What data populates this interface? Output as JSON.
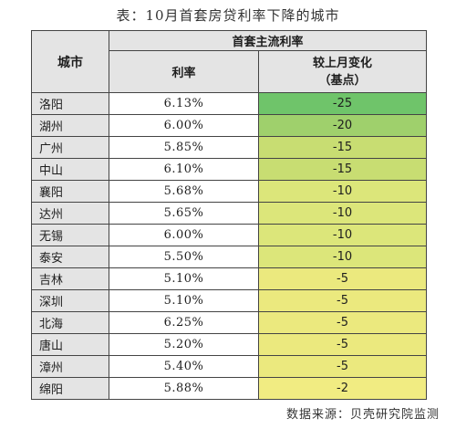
{
  "title": "表：10月首套房贷利率下降的城市",
  "table": {
    "header_city": "城市",
    "header_group": "首套主流利率",
    "header_rate": "利率",
    "header_change_line1": "较上月变化",
    "header_change_line2": "（基点）",
    "rows": [
      {
        "city": "洛阳",
        "rate": "6.13%",
        "change": "-25",
        "color": "#6fc46a"
      },
      {
        "city": "湖州",
        "rate": "6.00%",
        "change": "-20",
        "color": "#9fd06c"
      },
      {
        "city": "广州",
        "rate": "5.85%",
        "change": "-15",
        "color": "#c8dd72"
      },
      {
        "city": "中山",
        "rate": "6.10%",
        "change": "-15",
        "color": "#c8dd72"
      },
      {
        "city": "襄阳",
        "rate": "5.68%",
        "change": "-10",
        "color": "#dce67a"
      },
      {
        "city": "达州",
        "rate": "5.65%",
        "change": "-10",
        "color": "#dce67a"
      },
      {
        "city": "无锡",
        "rate": "6.00%",
        "change": "-10",
        "color": "#dce67a"
      },
      {
        "city": "泰安",
        "rate": "5.50%",
        "change": "-10",
        "color": "#dce67a"
      },
      {
        "city": "吉林",
        "rate": "5.10%",
        "change": "-5",
        "color": "#ebe97e"
      },
      {
        "city": "深圳",
        "rate": "5.10%",
        "change": "-5",
        "color": "#ebe97e"
      },
      {
        "city": "北海",
        "rate": "6.25%",
        "change": "-5",
        "color": "#ebe97e"
      },
      {
        "city": "唐山",
        "rate": "5.20%",
        "change": "-5",
        "color": "#ebe97e"
      },
      {
        "city": "漳州",
        "rate": "5.40%",
        "change": "-5",
        "color": "#ebe97e"
      },
      {
        "city": "绵阳",
        "rate": "5.88%",
        "change": "-2",
        "color": "#f1ec82"
      }
    ]
  },
  "source": "数据来源：贝壳研究院监测"
}
